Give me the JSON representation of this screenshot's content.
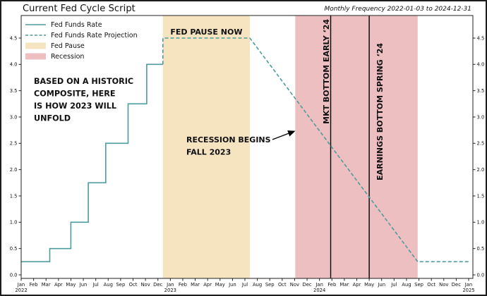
{
  "header": {
    "title": "Current Fed Cycle Script",
    "frequency_note": "Monthly Frequency 2022-01-03 to 2024-12-31"
  },
  "colors": {
    "line": "#4e9b9b",
    "fed_pause_band": "#f6e4c1",
    "recession_band": "#edbfc1",
    "text": "#111111",
    "vline": "#000000"
  },
  "chart_data": {
    "type": "line",
    "title": "Current Fed Cycle Script",
    "subtitle_right": "Monthly Frequency 2022-01-03 to 2024-12-31",
    "xlabel": "",
    "ylabel": "",
    "x_unit": "months since 2022-01",
    "xlim": [
      0,
      36
    ],
    "ylim": [
      0.0,
      4.5
    ],
    "grid": false,
    "yticks": [
      0.0,
      0.5,
      1.0,
      1.5,
      2.0,
      2.5,
      3.0,
      3.5,
      4.0,
      4.5
    ],
    "ytick_labels_both_sides": true,
    "x_ticks": [
      "Jan|2022",
      "Feb",
      "Mar",
      "Apr",
      "May",
      "Jun",
      "Jul",
      "Aug",
      "Sep",
      "Oct",
      "Nov",
      "Dec",
      "Jan|2023",
      "Feb",
      "Mar",
      "Apr",
      "May",
      "Jun",
      "Jul",
      "Aug",
      "Sep",
      "Oct",
      "Nov",
      "Dec",
      "Jan|2024",
      "Feb",
      "Mar",
      "Apr",
      "May",
      "Jun",
      "Jul",
      "Aug",
      "Sep",
      "Oct",
      "Nov",
      "Dec",
      "Jan|2025"
    ],
    "series": [
      {
        "name": "Fed Funds Rate",
        "style": "solid",
        "points": [
          [
            0,
            0.25
          ],
          [
            2.3,
            0.25
          ],
          [
            2.3,
            0.5
          ],
          [
            4.0,
            0.5
          ],
          [
            4.0,
            1.0
          ],
          [
            5.4,
            1.0
          ],
          [
            5.4,
            1.75
          ],
          [
            6.8,
            1.75
          ],
          [
            6.8,
            2.5
          ],
          [
            8.6,
            2.5
          ],
          [
            8.6,
            3.25
          ],
          [
            10.1,
            3.25
          ],
          [
            10.1,
            4.0
          ],
          [
            11.4,
            4.0
          ]
        ]
      },
      {
        "name": "Fed Funds Rate Projection",
        "style": "dashed",
        "points": [
          [
            11.4,
            4.0
          ],
          [
            11.4,
            4.5
          ],
          [
            18.4,
            4.5
          ],
          [
            31.9,
            0.25
          ],
          [
            36,
            0.25
          ]
        ]
      }
    ],
    "bands": [
      {
        "id": "fed-pause-band",
        "name": "Fed Pause",
        "x0": 11.4,
        "x1": 18.4
      },
      {
        "id": "recession-band",
        "name": "Recession",
        "x0": 22.05,
        "x1": 31.9
      }
    ],
    "vlines": [
      {
        "id": "mkt-bottom-vline",
        "x": 24.9,
        "label": "MKT BOTTOM EARLY ‘24"
      },
      {
        "id": "earnings-bottom-vline",
        "x": 28.0,
        "label": "EARNINGS BOTTOM SPRING ‘24"
      }
    ],
    "annotations": {
      "fed_pause_now": "FED PAUSE NOW",
      "historic_composite": [
        "BASED ON A HISTORIC",
        "COMPOSITE, HERE",
        "IS HOW 2023 WILL",
        "UNFOLD"
      ],
      "recession_begins": [
        "RECESSION BEGINS",
        "FALL 2023"
      ],
      "recession_arrow_to": [
        22.1,
        2.73
      ]
    },
    "legend": {
      "position": "upper-left",
      "items": [
        {
          "label": "Fed Funds Rate",
          "swatch": "line-solid"
        },
        {
          "label": "Fed Funds Rate Projection",
          "swatch": "line-dashed"
        },
        {
          "label": "Fed Pause",
          "swatch": "patch-fed-pause"
        },
        {
          "label": "Recession",
          "swatch": "patch-recession"
        }
      ]
    }
  }
}
